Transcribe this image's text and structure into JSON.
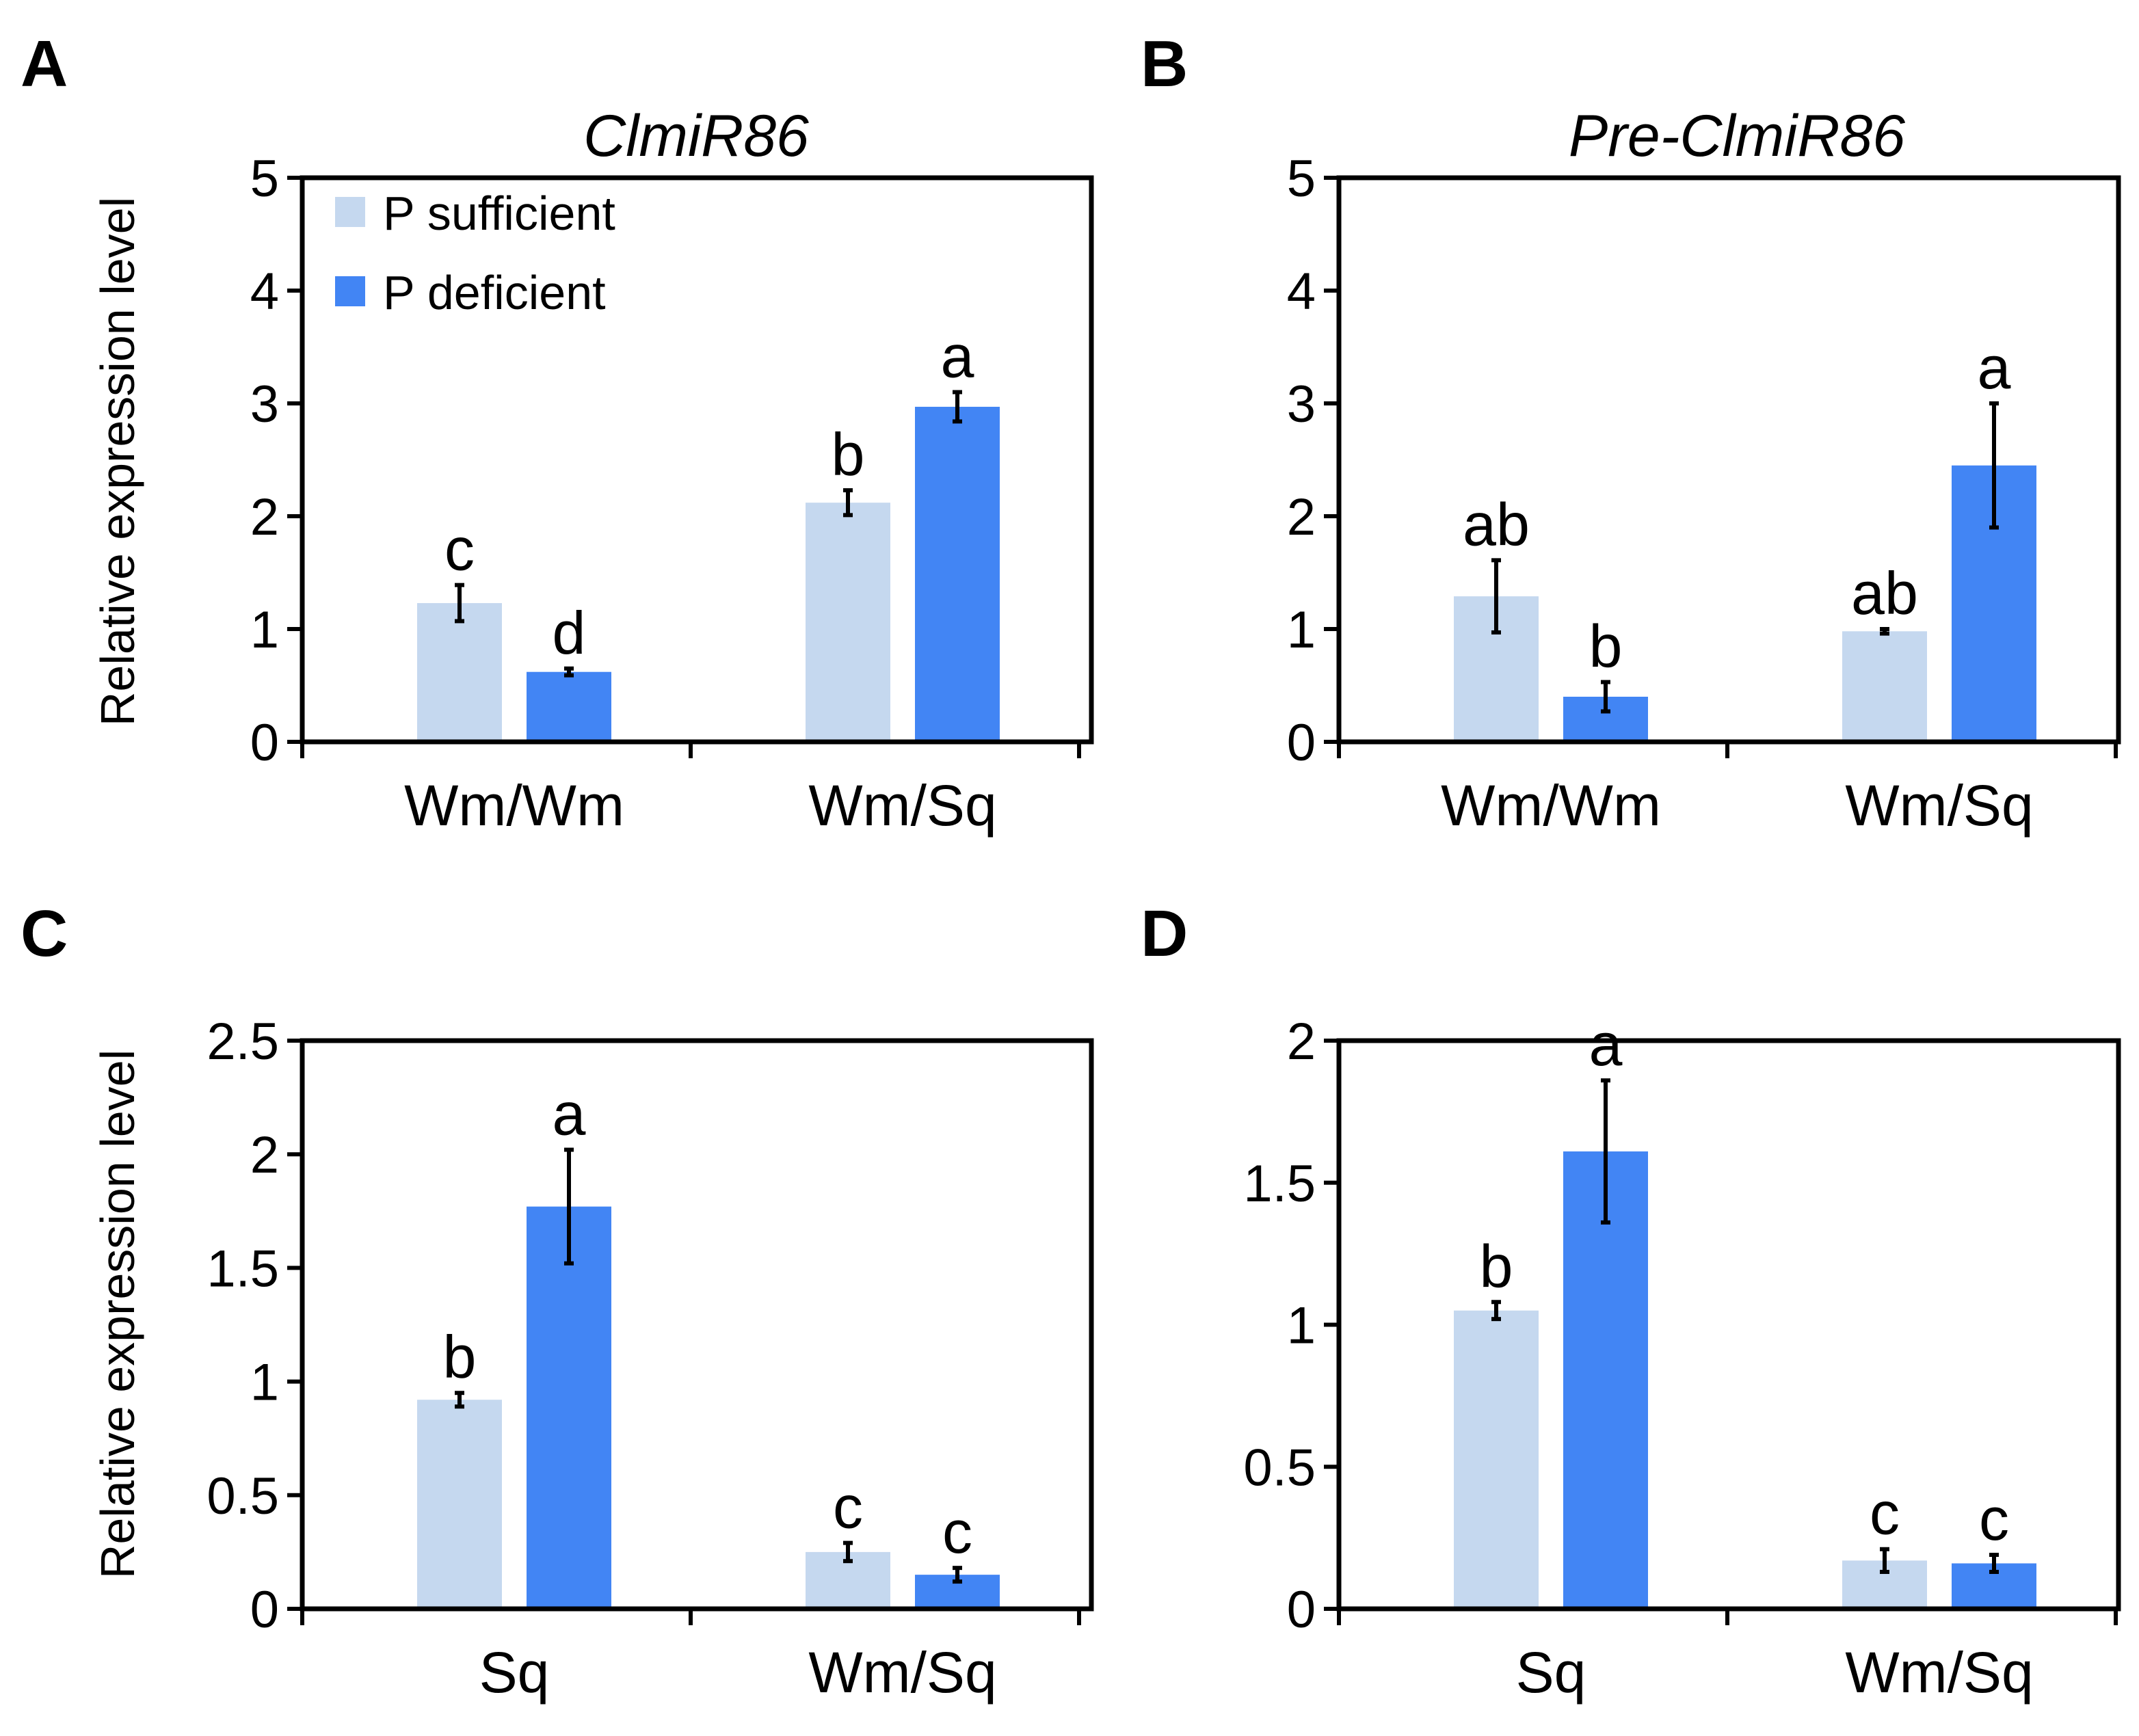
{
  "figure": {
    "panel_letters": [
      "A",
      "B",
      "C",
      "D"
    ],
    "ylabel": "Relative expression level",
    "legend": {
      "items": [
        {
          "label": "P sufficient",
          "color": "#C5D8EF"
        },
        {
          "label": "P deficient",
          "color": "#4285F4"
        }
      ]
    }
  },
  "chart_data": [
    {
      "panel": "A",
      "type": "bar",
      "title": "ClmiR86",
      "ylabel": "Relative expression level",
      "ylim": [
        0,
        5
      ],
      "yticks": [
        "0",
        "1",
        "2",
        "3",
        "4",
        "5"
      ],
      "ytick_values": [
        0,
        1,
        2,
        3,
        4,
        5
      ],
      "categories": [
        "Wm/Wm",
        "Wm/Sq"
      ],
      "legend_position": "top-left",
      "series": [
        {
          "name": "P sufficient",
          "values": [
            1.23,
            2.12
          ],
          "errors": [
            0.16,
            0.11
          ],
          "sig": [
            "c",
            "b"
          ]
        },
        {
          "name": "P deficient",
          "values": [
            0.62,
            2.97
          ],
          "errors": [
            0.03,
            0.13
          ],
          "sig": [
            "d",
            "a"
          ]
        }
      ]
    },
    {
      "panel": "B",
      "type": "bar",
      "title": "Pre-ClmiR86",
      "ylabel": "",
      "ylim": [
        0,
        5
      ],
      "yticks": [
        "0",
        "1",
        "2",
        "3",
        "4",
        "5"
      ],
      "ytick_values": [
        0,
        1,
        2,
        3,
        4,
        5
      ],
      "categories": [
        "Wm/Wm",
        "Wm/Sq"
      ],
      "series": [
        {
          "name": "P sufficient",
          "values": [
            1.29,
            0.98
          ],
          "errors": [
            0.32,
            0.02
          ],
          "sig": [
            "ab",
            "ab"
          ]
        },
        {
          "name": "P deficient",
          "values": [
            0.4,
            2.45
          ],
          "errors": [
            0.13,
            0.55
          ],
          "sig": [
            "b",
            "a"
          ]
        }
      ]
    },
    {
      "panel": "C",
      "type": "bar",
      "title": "",
      "ylabel": "Relative expression level",
      "ylim": [
        0,
        2.5
      ],
      "yticks": [
        "0",
        "0.5",
        "1",
        "1.5",
        "2",
        "2.5"
      ],
      "ytick_values": [
        0,
        0.5,
        1,
        1.5,
        2,
        2.5
      ],
      "categories": [
        "Sq",
        "Wm/Sq"
      ],
      "series": [
        {
          "name": "P sufficient",
          "values": [
            0.92,
            0.25
          ],
          "errors": [
            0.03,
            0.04
          ],
          "sig": [
            "b",
            "c"
          ]
        },
        {
          "name": "P deficient",
          "values": [
            1.77,
            0.15
          ],
          "errors": [
            0.25,
            0.03
          ],
          "sig": [
            "a",
            "c"
          ]
        }
      ]
    },
    {
      "panel": "D",
      "type": "bar",
      "title": "",
      "ylabel": "",
      "ylim": [
        0,
        2
      ],
      "yticks": [
        "0",
        "0.5",
        "1",
        "1.5",
        "2"
      ],
      "ytick_values": [
        0,
        0.5,
        1,
        1.5,
        2
      ],
      "categories": [
        "Sq",
        "Wm/Sq"
      ],
      "series": [
        {
          "name": "P sufficient",
          "values": [
            1.05,
            0.17
          ],
          "errors": [
            0.03,
            0.04
          ],
          "sig": [
            "b",
            "c"
          ]
        },
        {
          "name": "P deficient",
          "values": [
            1.61,
            0.16
          ],
          "errors": [
            0.25,
            0.03
          ],
          "sig": [
            "a",
            "c"
          ]
        }
      ]
    }
  ]
}
